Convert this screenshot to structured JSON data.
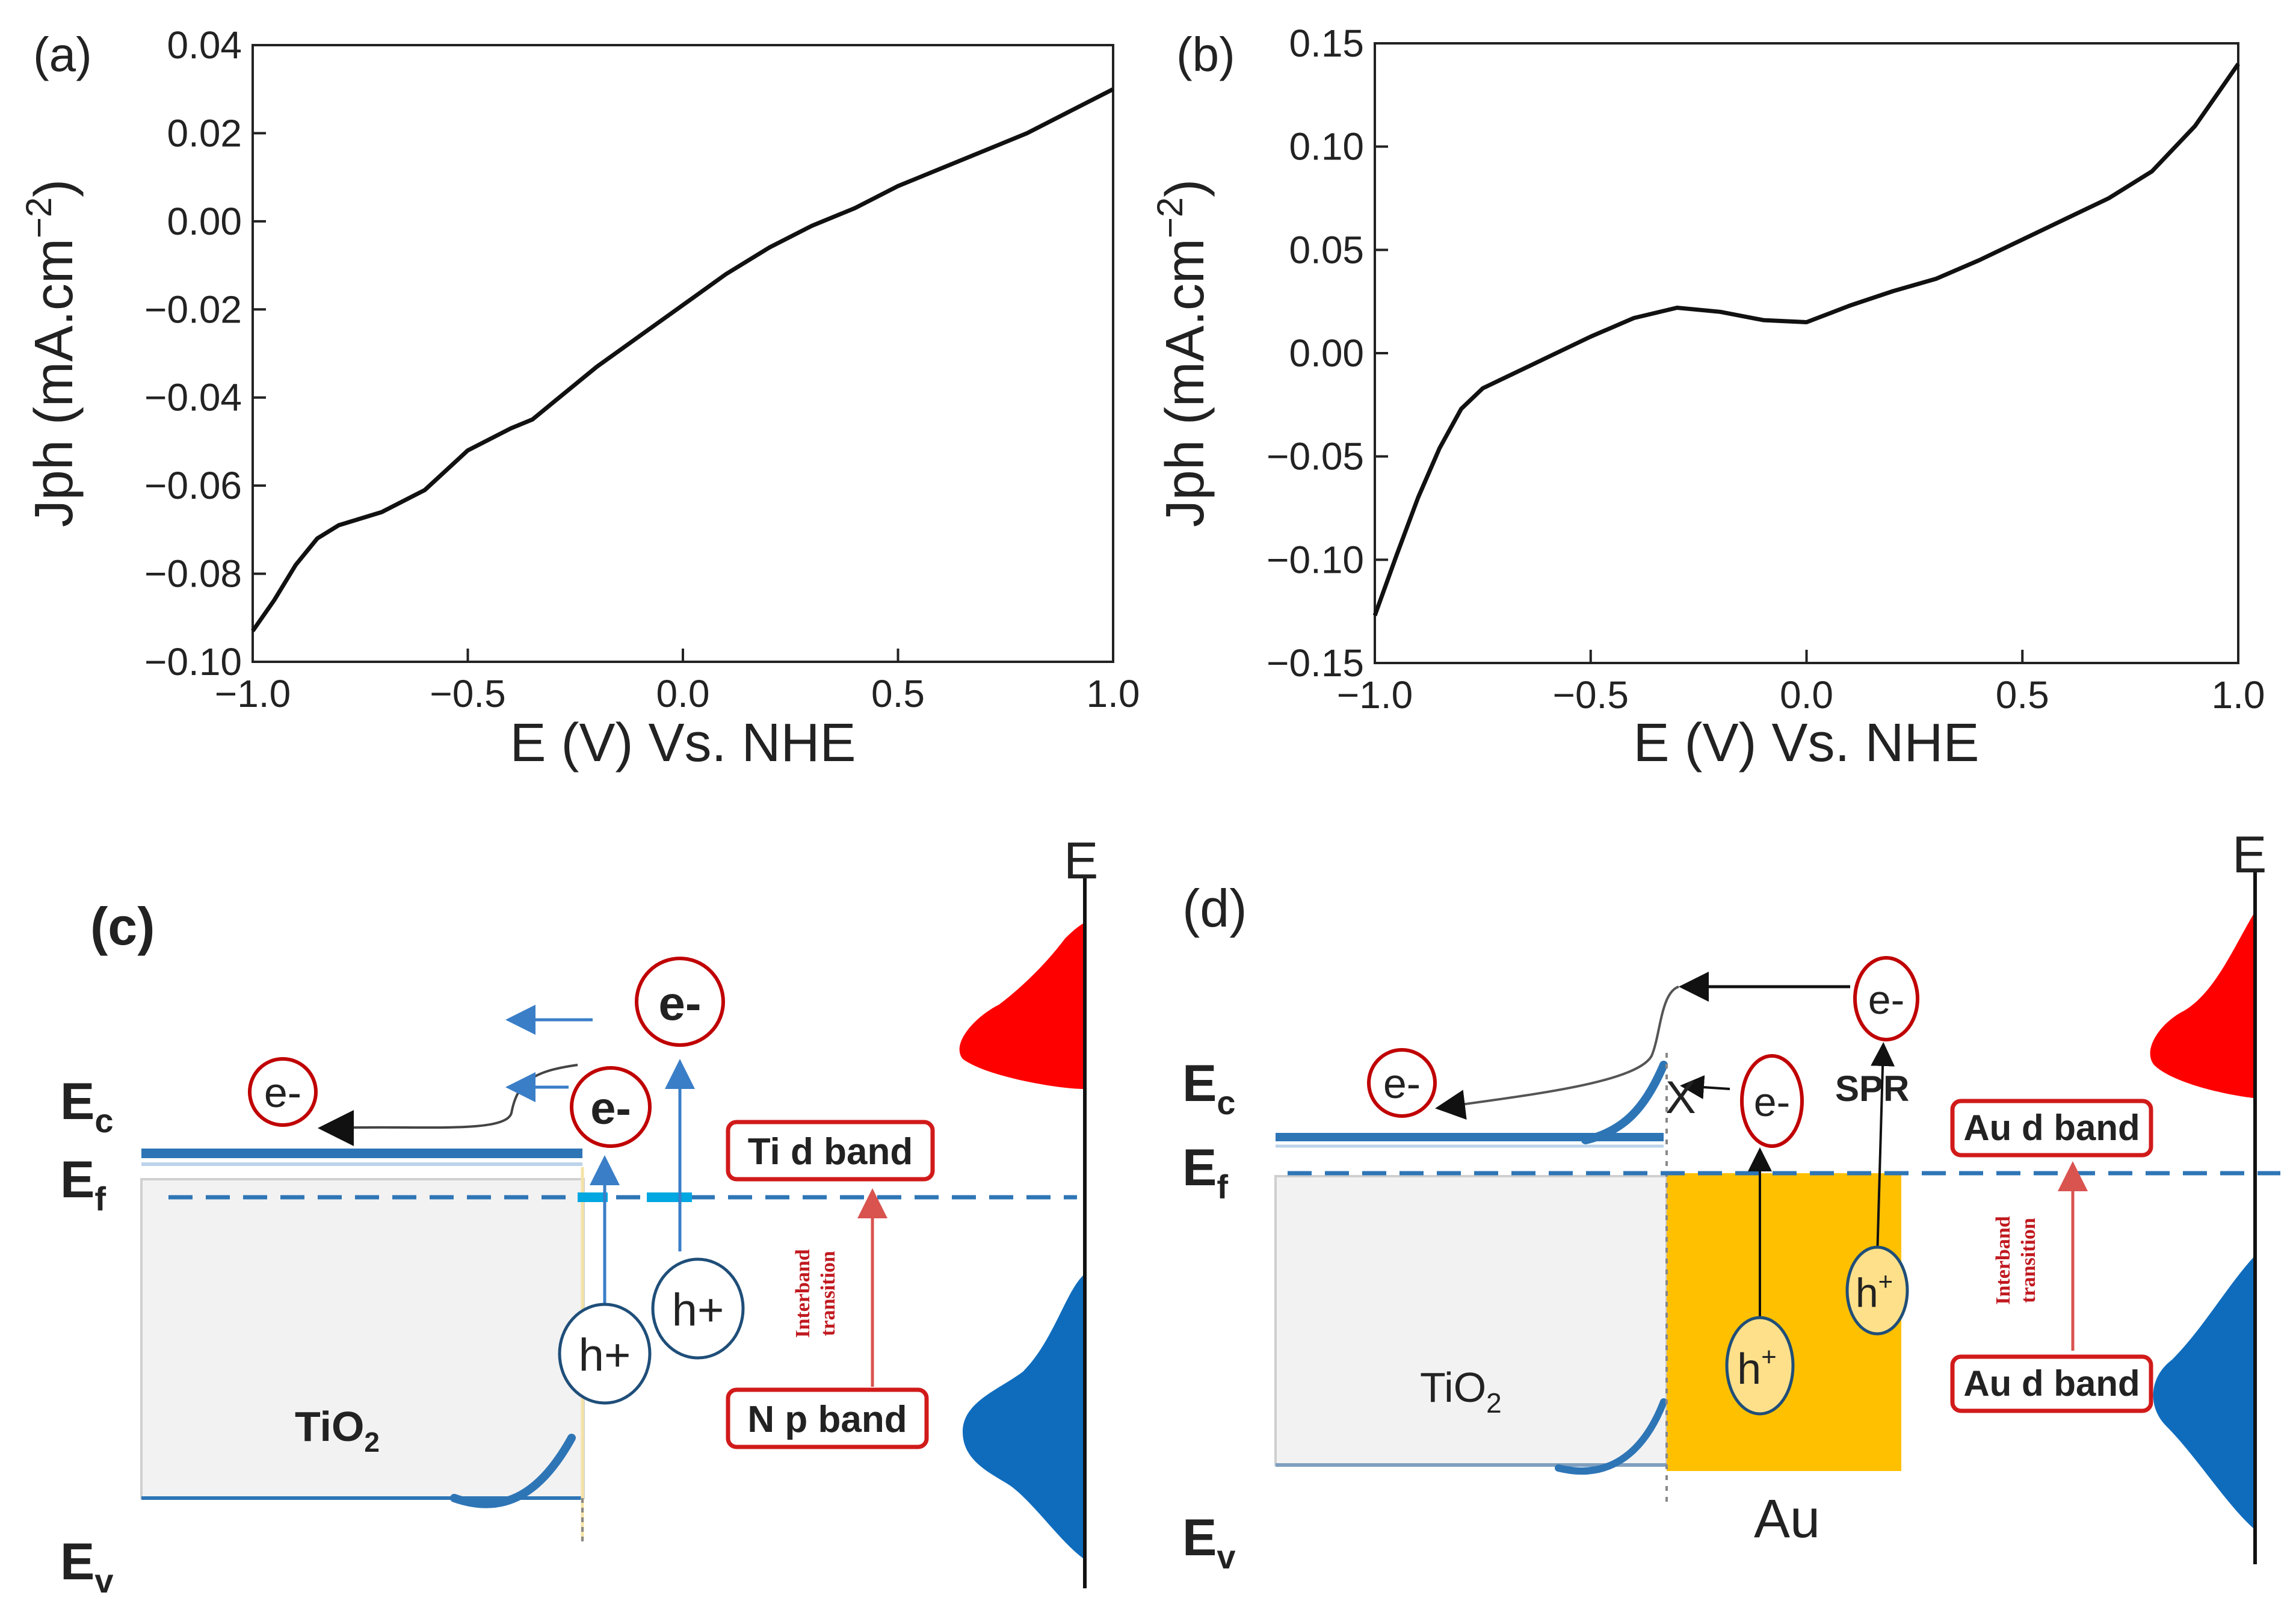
{
  "chart_data": [
    {
      "type": "line",
      "panel": "(a)",
      "xlabel": "E (V) Vs. NHE",
      "ylabel_main": "Jph (mA.cm",
      "ylabel_sup": "−2",
      "ylabel_close": ")",
      "xlim": [
        -1.0,
        1.0
      ],
      "ylim": [
        -0.1,
        0.04
      ],
      "xticks": [
        -1.0,
        -0.5,
        0.0,
        0.5,
        1.0
      ],
      "xtick_labels": [
        "−1.0",
        "−0.5",
        "0.0",
        "0.5",
        "1.0"
      ],
      "yticks": [
        -0.1,
        -0.08,
        -0.06,
        -0.04,
        -0.02,
        0.0,
        0.02,
        0.04
      ],
      "ytick_labels": [
        "−0.10",
        "−0.08",
        "−0.06",
        "−0.04",
        "−0.02",
        "0.00",
        "0.02",
        "0.04"
      ],
      "series": [
        {
          "name": "Jph",
          "x": [
            -1.0,
            -0.95,
            -0.9,
            -0.85,
            -0.8,
            -0.7,
            -0.6,
            -0.5,
            -0.4,
            -0.35,
            -0.3,
            -0.2,
            -0.1,
            0.0,
            0.1,
            0.2,
            0.3,
            0.4,
            0.5,
            0.6,
            0.7,
            0.8,
            0.9,
            1.0
          ],
          "y": [
            -0.093,
            -0.086,
            -0.078,
            -0.072,
            -0.069,
            -0.066,
            -0.061,
            -0.052,
            -0.047,
            -0.045,
            -0.041,
            -0.033,
            -0.026,
            -0.019,
            -0.012,
            -0.006,
            -0.001,
            0.003,
            0.008,
            0.012,
            0.016,
            0.02,
            0.025,
            0.03
          ]
        }
      ]
    },
    {
      "type": "line",
      "panel": "(b)",
      "xlabel": "E (V) Vs. NHE",
      "ylabel_main": "Jph (mA.cm",
      "ylabel_sup": "−2",
      "ylabel_close": ")",
      "xlim": [
        -1.0,
        1.0
      ],
      "ylim": [
        -0.15,
        0.15
      ],
      "xticks": [
        -1.0,
        -0.5,
        0.0,
        0.5,
        1.0
      ],
      "xtick_labels": [
        "−1.0",
        "−0.5",
        "0.0",
        "0.5",
        "1.0"
      ],
      "yticks": [
        -0.15,
        -0.1,
        -0.05,
        0.0,
        0.05,
        0.1,
        0.15
      ],
      "ytick_labels": [
        "−0.15",
        "−0.10",
        "−0.05",
        "0.00",
        "0.05",
        "0.10",
        "0.15"
      ],
      "series": [
        {
          "name": "Jph",
          "x": [
            -1.0,
            -0.95,
            -0.9,
            -0.85,
            -0.8,
            -0.75,
            -0.7,
            -0.6,
            -0.5,
            -0.4,
            -0.3,
            -0.2,
            -0.1,
            0.0,
            0.1,
            0.2,
            0.3,
            0.4,
            0.5,
            0.6,
            0.7,
            0.8,
            0.9,
            1.0
          ],
          "y": [
            -0.127,
            -0.098,
            -0.07,
            -0.046,
            -0.027,
            -0.017,
            -0.012,
            -0.002,
            0.008,
            0.017,
            0.022,
            0.02,
            0.016,
            0.015,
            0.023,
            0.03,
            0.036,
            0.045,
            0.055,
            0.065,
            0.075,
            0.088,
            0.11,
            0.14
          ]
        }
      ]
    }
  ],
  "diagram_c": {
    "panel": "(c)",
    "ec_label": "E",
    "ec_sub": "c",
    "ef_label": "E",
    "ef_sub": "f",
    "ev_label": "E",
    "ev_sub": "v",
    "tio2_label": "TiO",
    "tio2_sub": "2",
    "e_axis": "E",
    "electron_labels": [
      "e-",
      "e-",
      "e-"
    ],
    "hole_labels": [
      "h+",
      "h+"
    ],
    "ti_band": "Ti d band",
    "np_band": "N p band",
    "transition": [
      "Interband",
      "transition"
    ]
  },
  "diagram_d": {
    "panel": "(d)",
    "ec_label": "E",
    "ec_sub": "c",
    "ef_label": "E",
    "ef_sub": "f",
    "ev_label": "E",
    "ev_sub": "v",
    "tio2_label": "TiO",
    "tio2_sub": "2",
    "au_label": "Au",
    "spr_label": "SPR",
    "x_label": "X",
    "e_axis": "E",
    "electron_labels": [
      "e-",
      "e-",
      "e-"
    ],
    "hole_labels": [
      "h",
      "h"
    ],
    "hole_sup": "+",
    "au_band_top": "Au d band",
    "au_band_bottom": "Au d band",
    "transition": [
      "Interband",
      "transition"
    ]
  },
  "colors": {
    "line": "#111111",
    "red": "#e8141b",
    "dark_red": "#c0191f",
    "blue": "#1f6fb5",
    "light_blue": "#5b9bd5",
    "navy": "#1f4e79",
    "gold": "#ffc000",
    "gold_text": "#f0b400",
    "grey_box": "#f2f2f2"
  }
}
